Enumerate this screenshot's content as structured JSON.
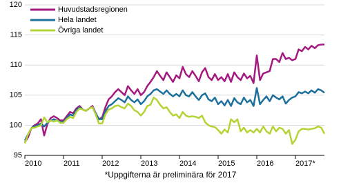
{
  "chart_data": {
    "type": "line",
    "footnote": "*Uppgifterna är preliminära för 2017",
    "categories": [
      "2010",
      null,
      null,
      null,
      null,
      null,
      null,
      null,
      null,
      null,
      null,
      null,
      "2011",
      null,
      null,
      null,
      null,
      null,
      null,
      null,
      null,
      null,
      null,
      null,
      "2012",
      null,
      null,
      null,
      null,
      null,
      null,
      null,
      null,
      null,
      null,
      null,
      "2013",
      null,
      null,
      null,
      null,
      null,
      null,
      null,
      null,
      null,
      null,
      null,
      "2014",
      null,
      null,
      null,
      null,
      null,
      null,
      null,
      null,
      null,
      null,
      null,
      "2015",
      null,
      null,
      null,
      null,
      null,
      null,
      null,
      null,
      null,
      null,
      null,
      "2016",
      null,
      null,
      null,
      null,
      null,
      null,
      null,
      null,
      null,
      null,
      null,
      "2017*",
      null,
      null,
      null,
      null,
      null,
      null,
      null,
      null,
      null
    ],
    "series": [
      {
        "name": "Huvudstadsregionen",
        "color": "#a3197f",
        "values": [
          97.2,
          98.0,
          99.5,
          100.0,
          100.3,
          101.0,
          98.3,
          100.2,
          101.2,
          101.5,
          101.2,
          100.8,
          100.8,
          101.5,
          102.2,
          102.0,
          102.8,
          103.2,
          102.6,
          102.4,
          102.8,
          103.2,
          102.0,
          101.0,
          101.3,
          103.0,
          104.3,
          104.8,
          105.5,
          106.0,
          105.5,
          105.0,
          106.5,
          105.8,
          105.2,
          106.0,
          105.0,
          105.5,
          106.5,
          107.2,
          108.0,
          109.0,
          108.2,
          107.5,
          108.8,
          108.0,
          107.2,
          108.3,
          107.8,
          109.7,
          108.5,
          108.0,
          109.0,
          108.2,
          107.3,
          108.8,
          109.5,
          108.0,
          107.5,
          108.5,
          107.5,
          108.0,
          107.3,
          108.5,
          107.2,
          108.8,
          108.0,
          107.5,
          108.6,
          107.8,
          108.2,
          107.0,
          111.6,
          107.5,
          108.6,
          108.8,
          109.0,
          111.0,
          111.0,
          110.5,
          112.0,
          111.0,
          111.2,
          110.8,
          111.0,
          112.6,
          112.3,
          113.0,
          112.6,
          113.2,
          112.8,
          113.3,
          113.4,
          113.4
        ]
      },
      {
        "name": "Hela landet",
        "color": "#1d6f9c",
        "values": [
          97.5,
          98.5,
          99.5,
          99.8,
          100.0,
          100.3,
          99.8,
          100.4,
          100.8,
          101.0,
          100.8,
          100.6,
          100.5,
          101.2,
          101.8,
          101.6,
          102.5,
          103.0,
          102.6,
          102.4,
          102.8,
          103.0,
          102.0,
          101.0,
          101.0,
          102.3,
          103.2,
          103.5,
          104.0,
          104.5,
          104.2,
          103.8,
          104.8,
          104.2,
          103.8,
          104.3,
          103.5,
          104.0,
          104.8,
          105.2,
          105.8,
          106.0,
          105.6,
          105.2,
          105.8,
          105.2,
          104.8,
          105.2,
          104.8,
          105.8,
          105.0,
          104.8,
          105.5,
          104.8,
          104.2,
          105.0,
          105.3,
          104.3,
          104.0,
          104.6,
          103.5,
          104.0,
          103.3,
          104.2,
          103.2,
          104.5,
          103.8,
          103.5,
          104.6,
          103.8,
          104.2,
          103.2,
          106.2,
          103.5,
          104.2,
          104.8,
          104.0,
          105.0,
          104.6,
          104.3,
          104.8,
          103.6,
          104.2,
          104.6,
          104.8,
          105.5,
          105.3,
          105.6,
          105.3,
          105.8,
          105.4,
          106.0,
          105.8,
          105.4
        ]
      },
      {
        "name": "Övriga landet",
        "color": "#b4d335",
        "values": [
          97.0,
          98.5,
          99.5,
          99.6,
          99.8,
          100.0,
          101.3,
          100.5,
          100.8,
          100.6,
          100.8,
          100.4,
          100.4,
          101.0,
          101.4,
          101.2,
          102.2,
          102.8,
          102.6,
          102.4,
          102.8,
          103.0,
          101.8,
          100.3,
          100.3,
          101.8,
          102.6,
          102.8,
          103.2,
          103.3,
          103.0,
          102.8,
          103.6,
          103.2,
          102.5,
          102.2,
          101.6,
          102.2,
          103.2,
          103.4,
          104.6,
          104.2,
          103.4,
          102.8,
          103.0,
          102.2,
          101.6,
          101.8,
          101.2,
          102.2,
          101.6,
          101.4,
          101.5,
          101.4,
          101.2,
          101.6,
          100.5,
          100.0,
          99.8,
          99.7,
          99.2,
          98.6,
          99.3,
          98.8,
          101.0,
          100.5,
          101.0,
          99.0,
          99.6,
          98.8,
          99.2,
          98.8,
          99.4,
          98.8,
          99.8,
          99.0,
          98.6,
          99.8,
          99.0,
          99.6,
          99.4,
          98.6,
          99.2,
          96.9,
          97.6,
          99.0,
          99.4,
          99.4,
          99.3,
          99.4,
          99.5,
          99.8,
          99.6,
          98.6
        ]
      }
    ],
    "ylim": [
      95,
      120
    ],
    "yticks": [
      95,
      100,
      105,
      110,
      115,
      120
    ],
    "grid": true,
    "legend": "top-left"
  }
}
